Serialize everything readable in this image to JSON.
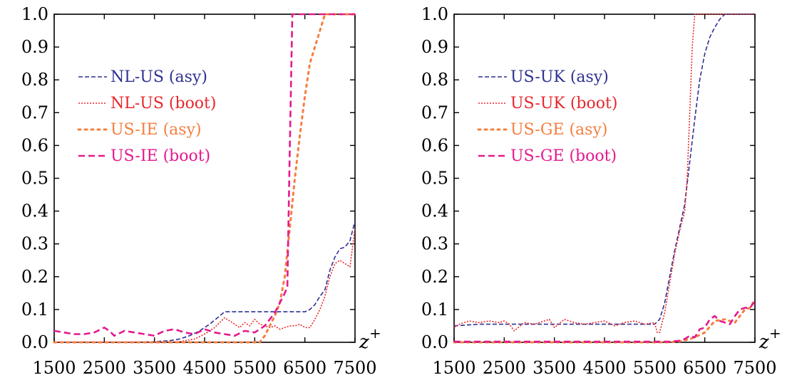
{
  "chart_data": [
    {
      "type": "line",
      "panel": "left",
      "xlabel": "z",
      "xlabel_superscript": "+",
      "ylabel": "",
      "xlim": [
        1500,
        7500
      ],
      "ylim": [
        0,
        1.0
      ],
      "x_ticks": [
        1500,
        2500,
        3500,
        4500,
        5500,
        6500,
        7500
      ],
      "y_ticks": [
        0.0,
        0.1,
        0.2,
        0.3,
        0.4,
        0.5,
        0.6,
        0.7,
        0.8,
        0.9,
        1.0
      ],
      "y_tick_labels": [
        "0.0",
        "0.1",
        "0.2",
        "0.3",
        "0.4",
        "0.5",
        "0.6",
        "0.7",
        "0.8",
        "0.9",
        "1.0"
      ],
      "grid": false,
      "legend_placement": "upper-left",
      "series": [
        {
          "name": "NL-US (asy)",
          "color": "#2e3192",
          "dash": "6,3",
          "width": 1.6,
          "x": [
            1500,
            2000,
            2500,
            3000,
            3500,
            3800,
            4000,
            4200,
            4400,
            4600,
            4800,
            4900,
            5000,
            5500,
            6000,
            6500,
            6600,
            6700,
            6800,
            6900,
            7000,
            7100,
            7200,
            7300,
            7400,
            7500
          ],
          "y": [
            0,
            0,
            0,
            0,
            0.002,
            0.005,
            0.01,
            0.02,
            0.035,
            0.055,
            0.08,
            0.093,
            0.093,
            0.093,
            0.093,
            0.093,
            0.1,
            0.115,
            0.14,
            0.16,
            0.22,
            0.26,
            0.285,
            0.29,
            0.31,
            0.37
          ]
        },
        {
          "name": "NL-US (boot)",
          "color": "#e8272c",
          "dash": "2,2",
          "width": 1.6,
          "x": [
            1500,
            2500,
            3500,
            4000,
            4300,
            4500,
            4700,
            4800,
            4900,
            5000,
            5100,
            5200,
            5300,
            5400,
            5500,
            5600,
            5700,
            5800,
            5900,
            6000,
            6100,
            6200,
            6300,
            6400,
            6500,
            6600,
            6700,
            6800,
            6900,
            7000,
            7100,
            7200,
            7300,
            7400,
            7500
          ],
          "y": [
            0,
            0,
            0,
            0.002,
            0.01,
            0.025,
            0.045,
            0.06,
            0.075,
            0.065,
            0.055,
            0.045,
            0.06,
            0.05,
            0.07,
            0.055,
            0.05,
            0.045,
            0.05,
            0.04,
            0.045,
            0.05,
            0.05,
            0.055,
            0.045,
            0.045,
            0.07,
            0.1,
            0.14,
            0.2,
            0.24,
            0.25,
            0.24,
            0.23,
            0.35
          ]
        },
        {
          "name": "US-IE (asy)",
          "color": "#f47f3f",
          "dash": "3,6",
          "width": 3,
          "x": [
            1500,
            3000,
            4000,
            5000,
            5600,
            5700,
            5800,
            5900,
            6000,
            6100,
            6200,
            6300,
            6400,
            6500,
            6600,
            6700,
            6800,
            6900,
            7000,
            7500
          ],
          "y": [
            0,
            0,
            0,
            0,
            0,
            0.02,
            0.05,
            0.08,
            0.12,
            0.2,
            0.35,
            0.5,
            0.63,
            0.75,
            0.85,
            0.9,
            0.95,
            1.0,
            1.0,
            1.0
          ]
        },
        {
          "name": "US-IE (boot)",
          "color": "#e6198c",
          "dash": "9,5",
          "width": 2.6,
          "x": [
            1500,
            1700,
            1900,
            2100,
            2300,
            2500,
            2600,
            2700,
            2900,
            3100,
            3300,
            3500,
            3700,
            3900,
            4100,
            4300,
            4500,
            4700,
            4900,
            5100,
            5300,
            5500,
            5700,
            5900,
            6000,
            6100,
            6150,
            6200,
            6250,
            6300,
            7500
          ],
          "y": [
            0.035,
            0.03,
            0.025,
            0.025,
            0.03,
            0.045,
            0.035,
            0.02,
            0.035,
            0.03,
            0.025,
            0.02,
            0.035,
            0.04,
            0.03,
            0.025,
            0.04,
            0.03,
            0.025,
            0.02,
            0.035,
            0.03,
            0.05,
            0.09,
            0.12,
            0.15,
            0.17,
            0.6,
            1.0,
            1.0,
            1.0
          ]
        }
      ]
    },
    {
      "type": "line",
      "panel": "right",
      "xlabel": "z",
      "xlabel_superscript": "+",
      "ylabel": "",
      "xlim": [
        1500,
        7500
      ],
      "ylim": [
        0,
        1.0
      ],
      "x_ticks": [
        1500,
        2500,
        3500,
        4500,
        5500,
        6500,
        7500
      ],
      "y_ticks": [
        0.0,
        0.1,
        0.2,
        0.3,
        0.4,
        0.5,
        0.6,
        0.7,
        0.8,
        0.9,
        1.0
      ],
      "y_tick_labels": [
        "0.0",
        "0.1",
        "0.2",
        "0.3",
        "0.4",
        "0.5",
        "0.6",
        "0.7",
        "0.8",
        "0.9",
        "1.0"
      ],
      "grid": false,
      "legend_placement": "upper-left",
      "series": [
        {
          "name": "US-UK (asy)",
          "color": "#2e3192",
          "dash": "6,3",
          "width": 1.6,
          "x": [
            1500,
            2000,
            2500,
            3000,
            3500,
            4000,
            4500,
            5000,
            5500,
            5600,
            5700,
            5800,
            5900,
            6000,
            6100,
            6200,
            6300,
            6400,
            6500,
            6600,
            6700,
            6800,
            6900,
            7000,
            7500
          ],
          "y": [
            0.05,
            0.055,
            0.055,
            0.055,
            0.055,
            0.055,
            0.055,
            0.055,
            0.055,
            0.07,
            0.12,
            0.2,
            0.28,
            0.35,
            0.42,
            0.55,
            0.68,
            0.8,
            0.88,
            0.93,
            0.96,
            0.985,
            1.0,
            1.0,
            1.0
          ]
        },
        {
          "name": "US-UK (boot)",
          "color": "#e8272c",
          "dash": "2,2",
          "width": 1.6,
          "x": [
            1500,
            1600,
            1800,
            2000,
            2200,
            2400,
            2500,
            2600,
            2700,
            2900,
            3100,
            3300,
            3400,
            3500,
            3700,
            3900,
            4100,
            4300,
            4500,
            4700,
            4900,
            5100,
            5300,
            5500,
            5550,
            5600,
            5700,
            5800,
            5900,
            6000,
            6100,
            6150,
            6200,
            6250,
            6300,
            6500,
            7500
          ],
          "y": [
            0.045,
            0.055,
            0.065,
            0.06,
            0.065,
            0.06,
            0.065,
            0.055,
            0.035,
            0.06,
            0.055,
            0.065,
            0.07,
            0.045,
            0.07,
            0.06,
            0.055,
            0.06,
            0.065,
            0.05,
            0.06,
            0.065,
            0.055,
            0.06,
            0.03,
            0.03,
            0.09,
            0.18,
            0.27,
            0.34,
            0.4,
            0.5,
            0.7,
            0.9,
            1.0,
            1.0,
            1.0
          ]
        },
        {
          "name": "US-GE (asy)",
          "color": "#f47f3f",
          "dash": "3,6",
          "width": 3,
          "x": [
            1500,
            5000,
            5800,
            6000,
            6100,
            6200,
            6300,
            6500,
            6700,
            6900,
            7100,
            7200,
            7300,
            7400,
            7500
          ],
          "y": [
            0,
            0,
            0,
            0.003,
            0.006,
            0.01,
            0.015,
            0.03,
            0.065,
            0.07,
            0.06,
            0.08,
            0.1,
            0.105,
            0.13
          ]
        },
        {
          "name": "US-GE (boot)",
          "color": "#e6198c",
          "dash": "9,5",
          "width": 2.6,
          "x": [
            1500,
            5000,
            5800,
            5900,
            6000,
            6100,
            6200,
            6300,
            6400,
            6500,
            6600,
            6700,
            6800,
            6900,
            7000,
            7100,
            7200,
            7300,
            7400,
            7500
          ],
          "y": [
            0.002,
            0.002,
            0.002,
            0.003,
            0.005,
            0.01,
            0.02,
            0.015,
            0.04,
            0.045,
            0.07,
            0.08,
            0.065,
            0.06,
            0.055,
            0.08,
            0.1,
            0.105,
            0.105,
            0.125
          ]
        }
      ]
    }
  ]
}
